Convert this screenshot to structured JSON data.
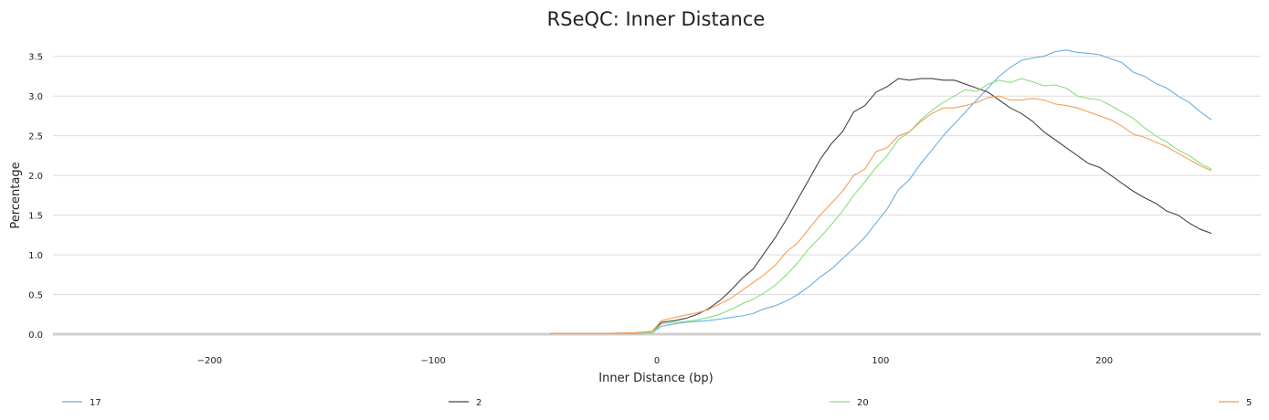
{
  "chart_data": {
    "type": "line",
    "title": "RSeQC: Inner Distance",
    "xlabel": "Inner Distance (bp)",
    "ylabel": "Percentage",
    "xlim": [
      -270,
      270
    ],
    "ylim": [
      0,
      3.75
    ],
    "xticks": [
      -200,
      -100,
      0,
      100,
      200
    ],
    "xtick_labels": [
      "−200",
      "−100",
      "0",
      "100",
      "200"
    ],
    "yticks": [
      0,
      0.5,
      1,
      1.5,
      2,
      2.5,
      3,
      3.5
    ],
    "ytick_labels": [
      "0.0",
      "0.5",
      "1.0",
      "1.5",
      "2.0",
      "2.5",
      "3.0",
      "3.5"
    ],
    "grid": true,
    "legend_position": "bottom",
    "series": [
      {
        "name": "17",
        "color": "#6aaee0",
        "points": [
          [
            -48,
            0.01
          ],
          [
            -40,
            0.01
          ],
          [
            -30,
            0.01
          ],
          [
            -20,
            0.01
          ],
          [
            -10,
            0.01
          ],
          [
            -5,
            0.015
          ],
          [
            -2,
            0.02
          ],
          [
            2,
            0.1
          ],
          [
            8,
            0.13
          ],
          [
            13,
            0.15
          ],
          [
            18,
            0.16
          ],
          [
            23,
            0.17
          ],
          [
            28,
            0.19
          ],
          [
            33,
            0.21
          ],
          [
            38,
            0.23
          ],
          [
            43,
            0.26
          ],
          [
            48,
            0.32
          ],
          [
            53,
            0.36
          ],
          [
            58,
            0.42
          ],
          [
            63,
            0.5
          ],
          [
            68,
            0.6
          ],
          [
            73,
            0.72
          ],
          [
            78,
            0.82
          ],
          [
            83,
            0.95
          ],
          [
            88,
            1.08
          ],
          [
            93,
            1.22
          ],
          [
            98,
            1.4
          ],
          [
            103,
            1.58
          ],
          [
            108,
            1.82
          ],
          [
            113,
            1.95
          ],
          [
            118,
            2.15
          ],
          [
            123,
            2.32
          ],
          [
            128,
            2.5
          ],
          [
            133,
            2.65
          ],
          [
            138,
            2.8
          ],
          [
            143,
            2.95
          ],
          [
            148,
            3.1
          ],
          [
            153,
            3.25
          ],
          [
            158,
            3.36
          ],
          [
            163,
            3.45
          ],
          [
            168,
            3.48
          ],
          [
            173,
            3.5
          ],
          [
            178,
            3.56
          ],
          [
            183,
            3.58
          ],
          [
            188,
            3.55
          ],
          [
            193,
            3.54
          ],
          [
            198,
            3.52
          ],
          [
            203,
            3.47
          ],
          [
            208,
            3.42
          ],
          [
            213,
            3.3
          ],
          [
            218,
            3.25
          ],
          [
            223,
            3.16
          ],
          [
            228,
            3.1
          ],
          [
            233,
            3.0
          ],
          [
            238,
            2.92
          ],
          [
            243,
            2.8
          ],
          [
            248,
            2.7
          ]
        ]
      },
      {
        "name": "2",
        "color": "#444444",
        "points": [
          [
            -48,
            0.01
          ],
          [
            -40,
            0.01
          ],
          [
            -30,
            0.01
          ],
          [
            -20,
            0.01
          ],
          [
            -10,
            0.015
          ],
          [
            -5,
            0.02
          ],
          [
            -2,
            0.02
          ],
          [
            2,
            0.15
          ],
          [
            8,
            0.17
          ],
          [
            13,
            0.2
          ],
          [
            18,
            0.25
          ],
          [
            23,
            0.32
          ],
          [
            28,
            0.42
          ],
          [
            33,
            0.55
          ],
          [
            38,
            0.7
          ],
          [
            43,
            0.82
          ],
          [
            48,
            1.02
          ],
          [
            53,
            1.22
          ],
          [
            58,
            1.45
          ],
          [
            63,
            1.7
          ],
          [
            68,
            1.95
          ],
          [
            73,
            2.2
          ],
          [
            78,
            2.4
          ],
          [
            83,
            2.55
          ],
          [
            88,
            2.8
          ],
          [
            93,
            2.88
          ],
          [
            98,
            3.05
          ],
          [
            103,
            3.12
          ],
          [
            108,
            3.22
          ],
          [
            113,
            3.2
          ],
          [
            118,
            3.22
          ],
          [
            123,
            3.22
          ],
          [
            128,
            3.2
          ],
          [
            133,
            3.2
          ],
          [
            138,
            3.15
          ],
          [
            143,
            3.1
          ],
          [
            148,
            3.05
          ],
          [
            153,
            2.95
          ],
          [
            158,
            2.85
          ],
          [
            163,
            2.78
          ],
          [
            168,
            2.68
          ],
          [
            173,
            2.55
          ],
          [
            178,
            2.45
          ],
          [
            183,
            2.35
          ],
          [
            188,
            2.25
          ],
          [
            193,
            2.15
          ],
          [
            198,
            2.1
          ],
          [
            203,
            2.0
          ],
          [
            208,
            1.9
          ],
          [
            213,
            1.8
          ],
          [
            218,
            1.72
          ],
          [
            223,
            1.65
          ],
          [
            228,
            1.55
          ],
          [
            233,
            1.5
          ],
          [
            238,
            1.4
          ],
          [
            243,
            1.32
          ],
          [
            248,
            1.27
          ]
        ]
      },
      {
        "name": "20",
        "color": "#88e07a",
        "points": [
          [
            -48,
            0.01
          ],
          [
            -40,
            0.01
          ],
          [
            -30,
            0.01
          ],
          [
            -20,
            0.01
          ],
          [
            -10,
            0.015
          ],
          [
            -5,
            0.02
          ],
          [
            -2,
            0.02
          ],
          [
            2,
            0.13
          ],
          [
            8,
            0.15
          ],
          [
            13,
            0.16
          ],
          [
            18,
            0.18
          ],
          [
            23,
            0.21
          ],
          [
            28,
            0.25
          ],
          [
            33,
            0.31
          ],
          [
            38,
            0.38
          ],
          [
            43,
            0.44
          ],
          [
            48,
            0.52
          ],
          [
            53,
            0.62
          ],
          [
            58,
            0.75
          ],
          [
            63,
            0.9
          ],
          [
            68,
            1.08
          ],
          [
            73,
            1.22
          ],
          [
            78,
            1.38
          ],
          [
            83,
            1.55
          ],
          [
            88,
            1.75
          ],
          [
            93,
            1.92
          ],
          [
            98,
            2.1
          ],
          [
            103,
            2.25
          ],
          [
            108,
            2.45
          ],
          [
            113,
            2.55
          ],
          [
            118,
            2.7
          ],
          [
            123,
            2.82
          ],
          [
            128,
            2.92
          ],
          [
            133,
            3.0
          ],
          [
            138,
            3.08
          ],
          [
            143,
            3.06
          ],
          [
            148,
            3.15
          ],
          [
            153,
            3.2
          ],
          [
            158,
            3.17
          ],
          [
            163,
            3.22
          ],
          [
            168,
            3.18
          ],
          [
            173,
            3.13
          ],
          [
            178,
            3.14
          ],
          [
            183,
            3.1
          ],
          [
            188,
            3.0
          ],
          [
            193,
            2.97
          ],
          [
            198,
            2.95
          ],
          [
            203,
            2.88
          ],
          [
            208,
            2.8
          ],
          [
            213,
            2.72
          ],
          [
            218,
            2.6
          ],
          [
            223,
            2.5
          ],
          [
            228,
            2.42
          ],
          [
            233,
            2.32
          ],
          [
            238,
            2.25
          ],
          [
            243,
            2.15
          ],
          [
            248,
            2.08
          ]
        ]
      },
      {
        "name": "5",
        "color": "#f59e58",
        "points": [
          [
            -48,
            0.01
          ],
          [
            -40,
            0.01
          ],
          [
            -30,
            0.01
          ],
          [
            -20,
            0.01
          ],
          [
            -10,
            0.02
          ],
          [
            -5,
            0.03
          ],
          [
            -2,
            0.04
          ],
          [
            2,
            0.17
          ],
          [
            8,
            0.21
          ],
          [
            13,
            0.24
          ],
          [
            18,
            0.27
          ],
          [
            23,
            0.31
          ],
          [
            28,
            0.38
          ],
          [
            33,
            0.45
          ],
          [
            38,
            0.55
          ],
          [
            43,
            0.65
          ],
          [
            48,
            0.75
          ],
          [
            53,
            0.87
          ],
          [
            58,
            1.04
          ],
          [
            63,
            1.15
          ],
          [
            68,
            1.33
          ],
          [
            73,
            1.5
          ],
          [
            78,
            1.65
          ],
          [
            83,
            1.8
          ],
          [
            88,
            2.0
          ],
          [
            93,
            2.08
          ],
          [
            98,
            2.3
          ],
          [
            103,
            2.35
          ],
          [
            108,
            2.5
          ],
          [
            113,
            2.55
          ],
          [
            118,
            2.68
          ],
          [
            123,
            2.78
          ],
          [
            128,
            2.85
          ],
          [
            133,
            2.85
          ],
          [
            138,
            2.88
          ],
          [
            143,
            2.92
          ],
          [
            148,
            2.98
          ],
          [
            153,
            3.0
          ],
          [
            158,
            2.95
          ],
          [
            163,
            2.95
          ],
          [
            168,
            2.97
          ],
          [
            173,
            2.95
          ],
          [
            178,
            2.9
          ],
          [
            183,
            2.88
          ],
          [
            188,
            2.85
          ],
          [
            193,
            2.8
          ],
          [
            198,
            2.75
          ],
          [
            203,
            2.7
          ],
          [
            208,
            2.62
          ],
          [
            213,
            2.52
          ],
          [
            218,
            2.48
          ],
          [
            223,
            2.42
          ],
          [
            228,
            2.36
          ],
          [
            233,
            2.28
          ],
          [
            238,
            2.2
          ],
          [
            243,
            2.12
          ],
          [
            248,
            2.06
          ]
        ]
      }
    ]
  }
}
